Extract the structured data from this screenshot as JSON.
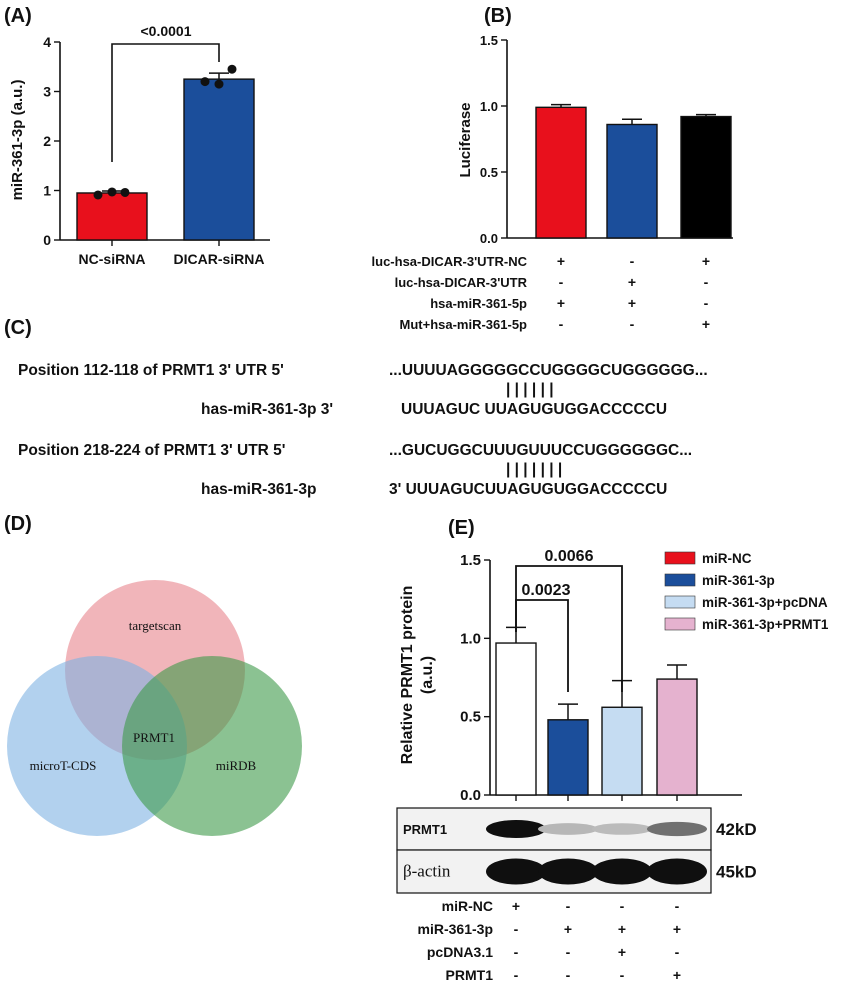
{
  "panels": {
    "A": {
      "letter": "(A)",
      "pvalue": "<0.0001",
      "chart_data": {
        "type": "bar",
        "ylabel": "miR-361-3p (a.u.)",
        "ylim": [
          0,
          4
        ],
        "yticks": [
          "0",
          "1",
          "2",
          "3",
          "4"
        ],
        "categories": [
          "NC-siRNA",
          "DICAR-siRNA"
        ],
        "values": [
          0.95,
          3.25
        ],
        "errors": [
          0.04,
          0.12
        ],
        "points": [
          [
            0.91,
            0.97,
            0.96
          ],
          [
            3.2,
            3.15,
            3.45
          ]
        ],
        "colors": [
          "#e8101c",
          "#1b4e9b"
        ]
      }
    },
    "B": {
      "letter": "(B)",
      "chart_data": {
        "type": "bar",
        "ylabel": "Luciferase",
        "ylim": [
          0,
          1.5
        ],
        "yticks": [
          "0.0",
          "0.5",
          "1.0",
          "1.5"
        ],
        "values": [
          0.99,
          0.86,
          0.92
        ],
        "errors": [
          0.02,
          0.04,
          0.015
        ],
        "colors": [
          "#e8101c",
          "#1b4e9b",
          "#000000"
        ],
        "conditions": [
          {
            "label": "luc-hsa-DICAR-3'UTR-NC",
            "signs": [
              "+",
              "-",
              "+"
            ]
          },
          {
            "label": "luc-hsa-DICAR-3'UTR",
            "signs": [
              "-",
              "+",
              "-"
            ]
          },
          {
            "label": "hsa-miR-361-5p",
            "signs": [
              "+",
              "+",
              "-"
            ]
          },
          {
            "label": "Mut+hsa-miR-361-5p",
            "signs": [
              "-",
              "-",
              "+"
            ]
          }
        ]
      }
    },
    "C": {
      "letter": "(C)",
      "rows": [
        {
          "target_label": "Position 112-118 of PRMT1 3' UTR  5'",
          "target_seq": "...UUUUAGGGGGCCUGGGGCUGGGGGG...",
          "pairs": "| | | | | |",
          "mirna_label": "has-miR-361-3p  3'",
          "mirna_seq": "UUUAGUC UUAGUGUGGACCCCCU"
        },
        {
          "target_label": "Position 218-224 of PRMT1 3' UTR  5'",
          "target_seq": "...GUCUGGCUUUGUUUCCUGGGGGGC...",
          "pairs": "| | | | | | |",
          "mirna_label": "has-miR-361-3p",
          "mirna_seq": "3' UUUAGUCUUAGUGUGGACCCCCU"
        }
      ]
    },
    "D": {
      "letter": "(D)",
      "sets": [
        {
          "name": "targetscan",
          "color": "#e8848c"
        },
        {
          "name": "microT-CDS",
          "color": "#7fb2e3"
        },
        {
          "name": "miRDB",
          "color": "#3e9a4a"
        }
      ],
      "center": "PRMT1"
    },
    "E": {
      "letter": "(E)",
      "pvalues": [
        "0.0066",
        "0.0023"
      ],
      "chart_data": {
        "type": "bar",
        "ylabel_line1": "Relative PRMT1 protein",
        "ylabel_line2": "(a.u.)",
        "ylim": [
          0,
          1.5
        ],
        "yticks": [
          "0.0",
          "0.5",
          "1.0",
          "1.5"
        ],
        "series": [
          {
            "name": "miR-NC",
            "value": 0.97,
            "error": 0.1,
            "fill": "#ffffff",
            "legend_color": "#e8101c"
          },
          {
            "name": "miR-361-3p",
            "value": 0.48,
            "error": 0.1,
            "fill": "#1b4e9b",
            "legend_color": "#1b4e9b"
          },
          {
            "name": "miR-361-3p+pcDNA",
            "value": 0.56,
            "error": 0.17,
            "fill": "#c5dcf2",
            "legend_color": "#c5dcf2"
          },
          {
            "name": "miR-361-3p+PRMT1",
            "value": 0.74,
            "error": 0.09,
            "fill": "#e5b2cf",
            "legend_color": "#e5b2cf"
          }
        ]
      },
      "blot": {
        "bands": [
          {
            "label": "PRMT1",
            "size": "42kD",
            "intensity": [
              1.0,
              0.22,
              0.2,
              0.55
            ]
          },
          {
            "label": "β-actin",
            "size": "45kD",
            "intensity": [
              1.0,
              1.0,
              1.0,
              1.0
            ]
          }
        ]
      },
      "conditions": [
        {
          "label": "miR-NC",
          "signs": [
            "+",
            "-",
            "-",
            "-"
          ]
        },
        {
          "label": "miR-361-3p",
          "signs": [
            "-",
            "+",
            "+",
            "+"
          ]
        },
        {
          "label": "pcDNA3.1",
          "signs": [
            "-",
            "-",
            "+",
            "-"
          ]
        },
        {
          "label": "PRMT1",
          "signs": [
            "-",
            "-",
            "-",
            "+"
          ]
        }
      ]
    }
  }
}
